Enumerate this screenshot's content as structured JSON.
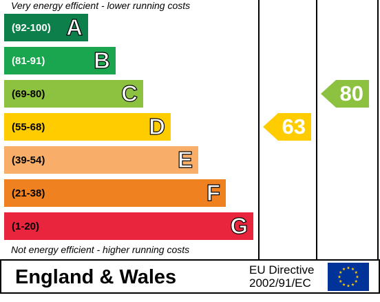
{
  "chart_data": {
    "type": "bar",
    "top_caption": "Very energy efficient - lower running costs",
    "bottom_caption": "Not energy efficient - higher running costs",
    "bands": [
      {
        "range": "(92-100)",
        "letter": "A",
        "color": "#0c7f4a",
        "range_color": "#ffffff"
      },
      {
        "range": "(81-91)",
        "letter": "B",
        "color": "#1aa54f",
        "range_color": "#ffffff"
      },
      {
        "range": "(69-80)",
        "letter": "C",
        "color": "#8dc140",
        "range_color": "#000000"
      },
      {
        "range": "(55-68)",
        "letter": "D",
        "color": "#ffcc00",
        "range_color": "#000000"
      },
      {
        "range": "(39-54)",
        "letter": "E",
        "color": "#f8ae68",
        "range_color": "#000000"
      },
      {
        "range": "(21-38)",
        "letter": "F",
        "color": "#f08121",
        "range_color": "#000000"
      },
      {
        "range": "(1-20)",
        "letter": "G",
        "color": "#e9253d",
        "range_color": "#000000"
      }
    ],
    "ratings": [
      {
        "value": 63,
        "band": "D",
        "color": "#ffcc00"
      },
      {
        "value": 80,
        "band": "C",
        "color": "#8dc140"
      }
    ]
  },
  "footer": {
    "country": "England & Wales",
    "directive_line1": "EU Directive",
    "directive_line2": "2002/91/EC"
  }
}
